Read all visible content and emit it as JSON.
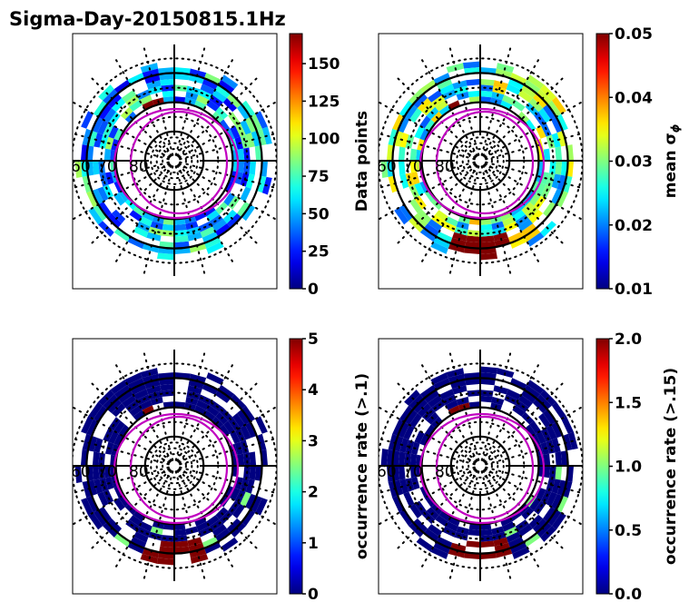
{
  "figure": {
    "title": "Sigma-Day-20150815.1Hz"
  },
  "chart_data": [
    {
      "type": "heatmap",
      "projection": "polar (magnetic latitude / MLT)",
      "panel": "top-left",
      "colorbar_label": "Data points",
      "colorbar_ticks": [
        "0",
        "25",
        "50",
        "75",
        "100",
        "125",
        "150"
      ],
      "colorbar_range": [
        0,
        170
      ],
      "colormap": "jet",
      "lat_labels": [
        "60",
        "70",
        "80"
      ],
      "lat_circles": [
        60,
        70,
        80
      ],
      "oval_boundaries": "magenta",
      "description": "Mostly low counts (25-75) in ring between 55-70 deg, peaks ~100-125 on dayside and dusk, max ~170 near noon 70 deg"
    },
    {
      "type": "heatmap",
      "projection": "polar (magnetic latitude / MLT)",
      "panel": "top-right",
      "colorbar_label": "mean σφ",
      "colorbar_ticks": [
        "0.01",
        "0.02",
        "0.03",
        "0.04",
        "0.05"
      ],
      "colorbar_range": [
        0.01,
        0.05
      ],
      "colormap": "jet",
      "lat_labels": [
        "60",
        "70",
        "80"
      ],
      "lat_circles": [
        60,
        70,
        80
      ],
      "oval_boundaries": "magenta",
      "description": "Mostly 0.02-0.03; high values (0.045-0.05) near midnight 60-65 deg and noon 70 deg"
    },
    {
      "type": "heatmap",
      "projection": "polar (magnetic latitude / MLT)",
      "panel": "bottom-left",
      "colorbar_label": "occurrence rate (>.1)",
      "colorbar_ticks": [
        "0",
        "1",
        "2",
        "3",
        "4",
        "5"
      ],
      "colorbar_range": [
        0,
        5
      ],
      "colormap": "jet",
      "lat_labels": [
        "60",
        "70",
        "80"
      ],
      "lat_circles": [
        60,
        70,
        80
      ],
      "oval_boundaries": "magenta",
      "description": "Near zero everywhere; ~5 near midnight 60-65 deg and noon 70 deg; ~2 small cells pre/post midnight"
    },
    {
      "type": "heatmap",
      "projection": "polar (magnetic latitude / MLT)",
      "panel": "bottom-right",
      "colorbar_label": "occurrence rate (>.15)",
      "colorbar_ticks": [
        "0.0",
        "0.5",
        "1.0",
        "1.5",
        "2.0"
      ],
      "colorbar_range": [
        0,
        2
      ],
      "colormap": "jet",
      "lat_labels": [
        "60",
        "70",
        "80"
      ],
      "lat_circles": [
        60,
        70,
        80
      ],
      "oval_boundaries": "magenta",
      "description": "Near zero everywhere; ~2 near midnight 60-65 deg and noon 70 deg"
    }
  ],
  "panels": [
    {
      "id": "top-left",
      "cb_label": "Data points",
      "ticks": [
        "0",
        "25",
        "50",
        "75",
        "100",
        "125",
        "150"
      ],
      "tick_vals": [
        0,
        25,
        50,
        75,
        100,
        125,
        150
      ],
      "vmin": 0,
      "vmax": 170
    },
    {
      "id": "top-right",
      "cb_label": "mean σ",
      "cb_sub": "ϕ",
      "ticks": [
        "0.01",
        "0.02",
        "0.03",
        "0.04",
        "0.05"
      ],
      "tick_vals": [
        0.01,
        0.02,
        0.03,
        0.04,
        0.05
      ],
      "vmin": 0.01,
      "vmax": 0.05
    },
    {
      "id": "bottom-left",
      "cb_label": "occurrence rate (>.1)",
      "ticks": [
        "0",
        "1",
        "2",
        "3",
        "4",
        "5"
      ],
      "tick_vals": [
        0,
        1,
        2,
        3,
        4,
        5
      ],
      "vmin": 0,
      "vmax": 5
    },
    {
      "id": "bottom-right",
      "cb_label": "occurrence rate (>.15)",
      "ticks": [
        "0.0",
        "0.5",
        "1.0",
        "1.5",
        "2.0"
      ],
      "tick_vals": [
        0,
        0.5,
        1,
        1.5,
        2
      ],
      "vmin": 0,
      "vmax": 2
    }
  ],
  "lat_labels": [
    "60",
    "70",
    "80"
  ]
}
